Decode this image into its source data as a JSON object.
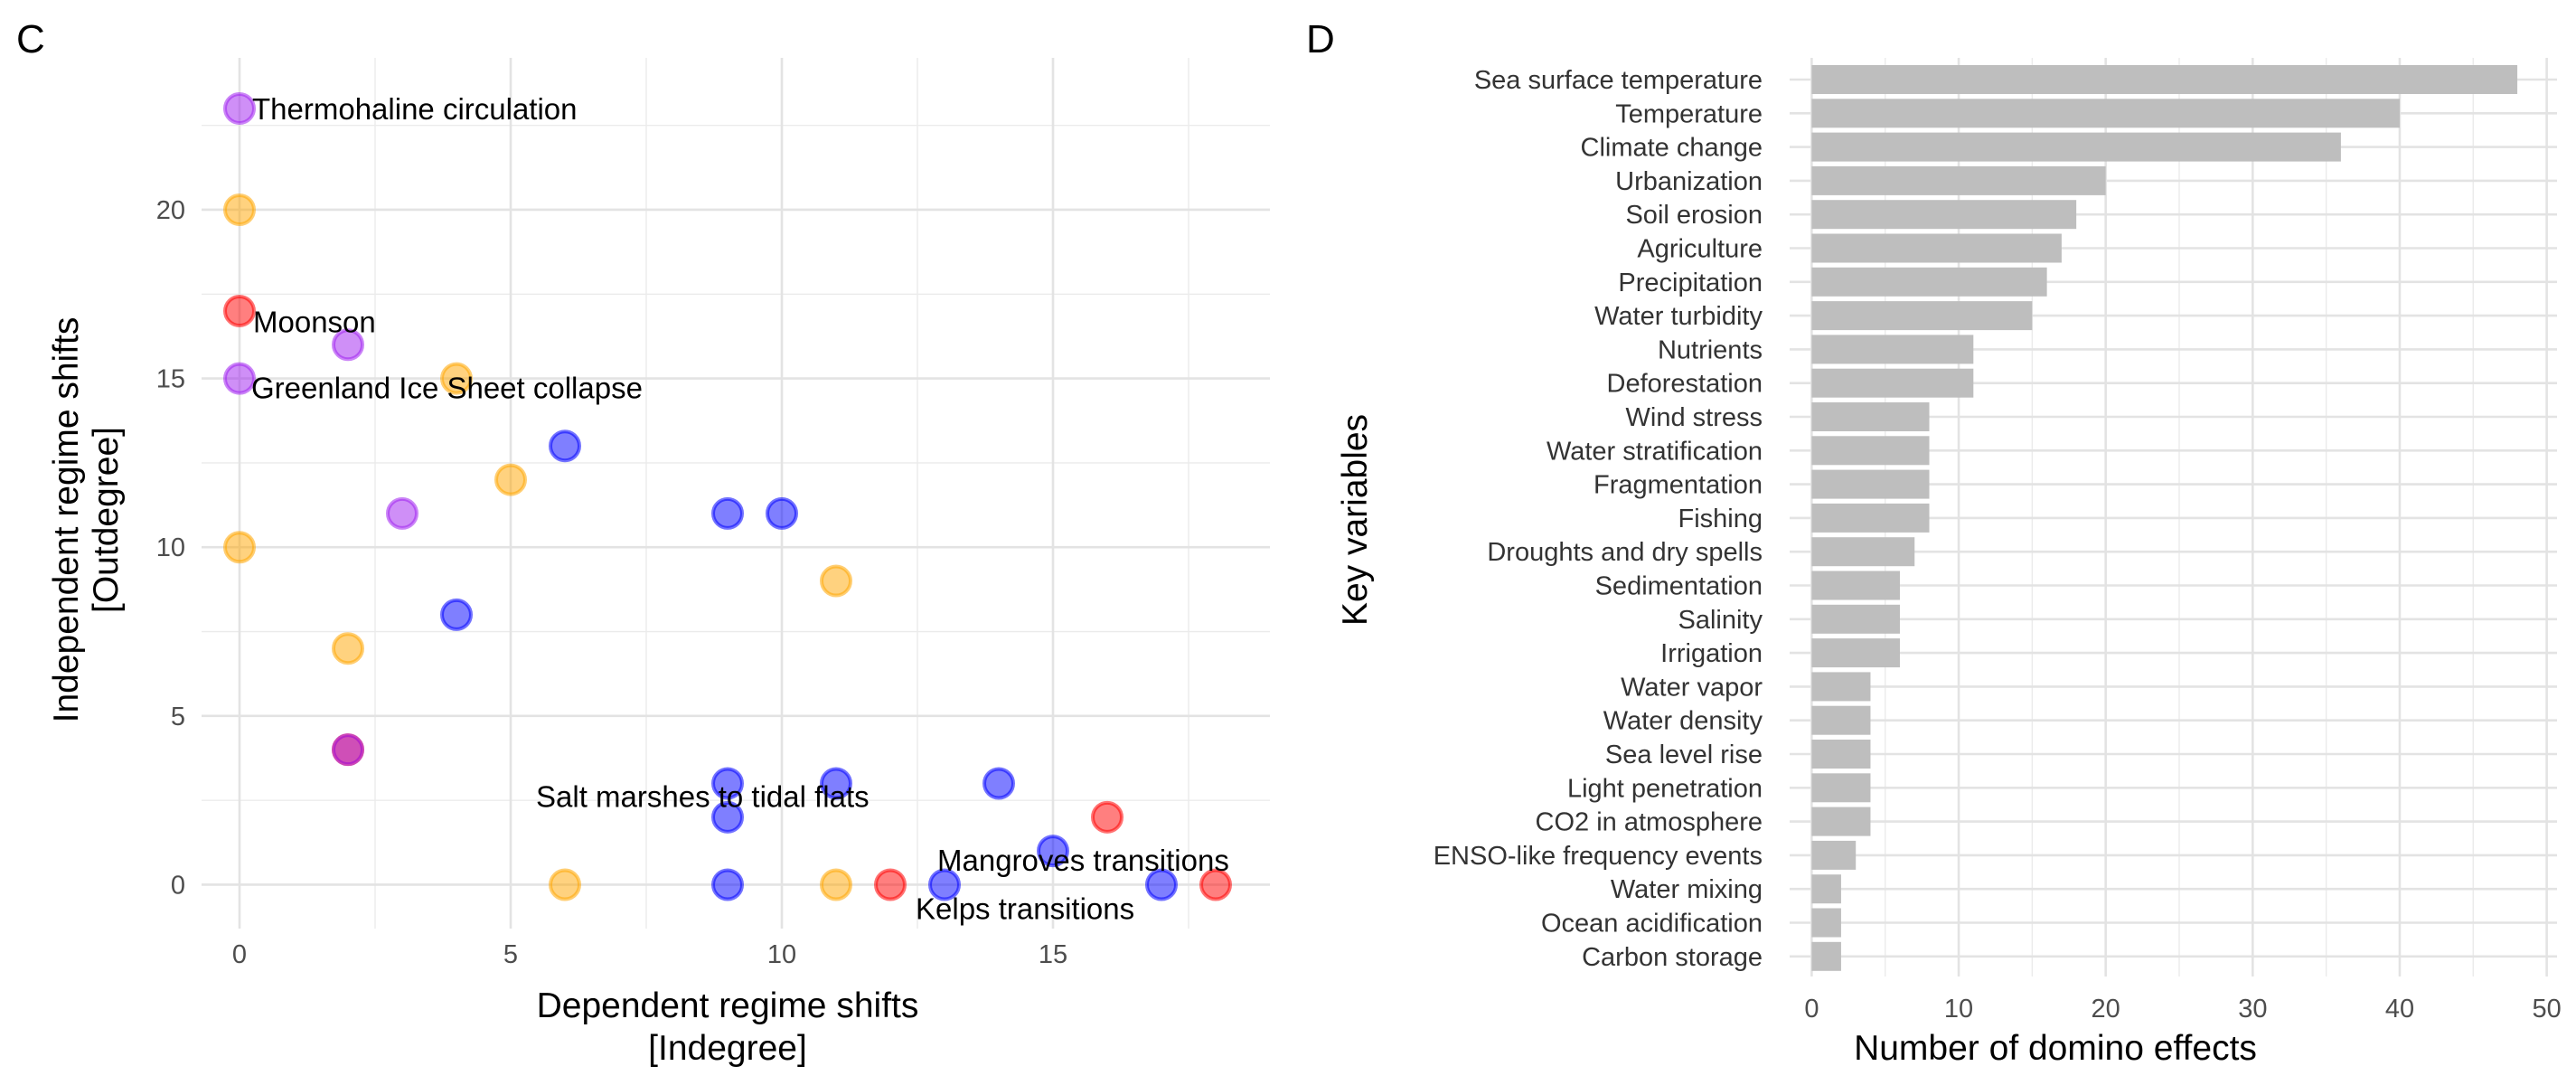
{
  "chart_data": [
    {
      "type": "scatter",
      "panel_label": "C",
      "xlabel": "Dependent regime shifts",
      "xlabel_sub": "[Indegree]",
      "ylabel": "Independent regime shifts",
      "ylabel_sub": "[Outdegree]",
      "xlim": [
        -0.7,
        19
      ],
      "ylim": [
        -1.3,
        24.5
      ],
      "xticks": [
        0,
        5,
        10,
        15
      ],
      "yticks": [
        0,
        5,
        10,
        15,
        20
      ],
      "grid": true,
      "colors": {
        "purple": "#a020f0",
        "orange": "#ffa500",
        "red": "#ff0000",
        "blue": "#0000ff"
      },
      "points": [
        {
          "x": 0,
          "y": 23,
          "color": "purple",
          "label": "Thermohaline circulation"
        },
        {
          "x": 0,
          "y": 20,
          "color": "orange"
        },
        {
          "x": 0,
          "y": 17,
          "color": "red"
        },
        {
          "x": 2,
          "y": 16,
          "color": "purple",
          "label": "Moonson"
        },
        {
          "x": 0,
          "y": 15,
          "color": "purple",
          "label": "Greenland Ice Sheet collapse"
        },
        {
          "x": 4,
          "y": 15,
          "color": "orange"
        },
        {
          "x": 6,
          "y": 13,
          "color": "blue"
        },
        {
          "x": 5,
          "y": 12,
          "color": "orange"
        },
        {
          "x": 3,
          "y": 11,
          "color": "purple"
        },
        {
          "x": 9,
          "y": 11,
          "color": "blue"
        },
        {
          "x": 10,
          "y": 11,
          "color": "blue"
        },
        {
          "x": 0,
          "y": 10,
          "color": "orange"
        },
        {
          "x": 11,
          "y": 9,
          "color": "orange"
        },
        {
          "x": 4,
          "y": 8,
          "color": "blue"
        },
        {
          "x": 2,
          "y": 7,
          "color": "orange"
        },
        {
          "x": 2,
          "y": 4,
          "color": "red"
        },
        {
          "x": 2,
          "y": 4,
          "color": "purple"
        },
        {
          "x": 9,
          "y": 3,
          "color": "blue",
          "label": "Salt marshes to tidal flats"
        },
        {
          "x": 11,
          "y": 3,
          "color": "blue"
        },
        {
          "x": 14,
          "y": 3,
          "color": "blue"
        },
        {
          "x": 9,
          "y": 2,
          "color": "blue"
        },
        {
          "x": 16,
          "y": 2,
          "color": "red"
        },
        {
          "x": 15,
          "y": 1,
          "color": "blue",
          "label": "Mangroves transitions"
        },
        {
          "x": 6,
          "y": 0,
          "color": "orange"
        },
        {
          "x": 9,
          "y": 0,
          "color": "blue"
        },
        {
          "x": 11,
          "y": 0,
          "color": "orange"
        },
        {
          "x": 12,
          "y": 0,
          "color": "red"
        },
        {
          "x": 13,
          "y": 0,
          "color": "blue",
          "label": "Kelps transitions"
        },
        {
          "x": 17,
          "y": 0,
          "color": "blue"
        },
        {
          "x": 18,
          "y": 0,
          "color": "red"
        }
      ]
    },
    {
      "type": "bar",
      "orientation": "horizontal",
      "panel_label": "D",
      "xlabel": "Number of domino effects",
      "ylabel": "Key variables",
      "xlim": [
        -1.5,
        50.7
      ],
      "xticks": [
        0,
        10,
        20,
        30,
        40,
        50
      ],
      "grid": true,
      "bar_color": "#bebebe",
      "categories": [
        "Sea surface temperature",
        "Temperature",
        "Climate change",
        "Urbanization",
        "Soil erosion",
        "Agriculture",
        "Precipitation",
        "Water turbidity",
        "Nutrients",
        "Deforestation",
        "Wind stress",
        "Water stratification",
        "Fragmentation",
        "Fishing",
        "Droughts and dry spells",
        "Sedimentation",
        "Salinity",
        "Irrigation",
        "Water vapor",
        "Water density",
        "Sea level rise",
        "Light penetration",
        "CO2 in atmosphere",
        "ENSO-like frequency events",
        "Water mixing",
        "Ocean acidification",
        "Carbon storage"
      ],
      "values": [
        48,
        40,
        36,
        20,
        18,
        17,
        16,
        15,
        11,
        11,
        8,
        8,
        8,
        8,
        7,
        6,
        6,
        6,
        4,
        4,
        4,
        4,
        4,
        3,
        2,
        2,
        2
      ]
    }
  ]
}
